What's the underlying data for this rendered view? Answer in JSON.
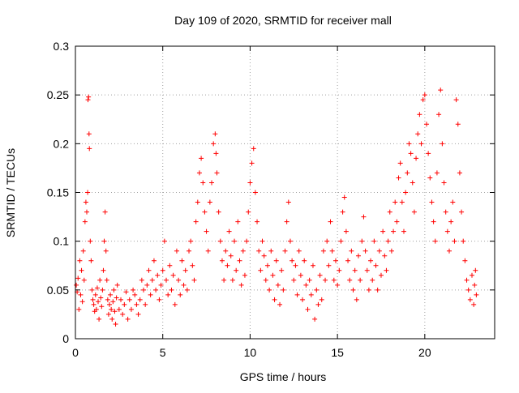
{
  "chart_data": {
    "type": "scatter",
    "title": "Day 109 of 2020, SRMTID for receiver mall",
    "xlabel": "GPS time / hours",
    "ylabel": "SRMTID / TECUs",
    "xlim": [
      0,
      24
    ],
    "ylim": [
      0,
      0.3
    ],
    "xticks": [
      0,
      5,
      10,
      15,
      20
    ],
    "yticks": [
      0,
      0.05,
      0.1,
      0.15,
      0.2,
      0.25,
      0.3
    ],
    "xtick_labels": [
      "0",
      "5",
      "10",
      "15",
      "20"
    ],
    "ytick_labels": [
      "0",
      "0.05",
      "0.1",
      "0.15",
      "0.2",
      "0.25",
      "0.3"
    ],
    "grid": true,
    "marker": "+",
    "color": "#ff0000",
    "series": [
      {
        "name": "SRMTID",
        "points": [
          [
            0.05,
            0.055
          ],
          [
            0.1,
            0.048
          ],
          [
            0.15,
            0.062
          ],
          [
            0.2,
            0.03
          ],
          [
            0.25,
            0.08
          ],
          [
            0.3,
            0.045
          ],
          [
            0.35,
            0.07
          ],
          [
            0.4,
            0.038
          ],
          [
            0.45,
            0.09
          ],
          [
            0.5,
            0.06
          ],
          [
            0.55,
            0.12
          ],
          [
            0.6,
            0.14
          ],
          [
            0.65,
            0.13
          ],
          [
            0.7,
            0.15
          ],
          [
            0.72,
            0.245
          ],
          [
            0.75,
            0.248
          ],
          [
            0.78,
            0.21
          ],
          [
            0.8,
            0.195
          ],
          [
            0.85,
            0.1
          ],
          [
            0.9,
            0.08
          ],
          [
            0.95,
            0.05
          ],
          [
            1.0,
            0.04
          ],
          [
            1.05,
            0.035
          ],
          [
            1.1,
            0.028
          ],
          [
            1.15,
            0.045
          ],
          [
            1.2,
            0.03
          ],
          [
            1.25,
            0.052
          ],
          [
            1.3,
            0.038
          ],
          [
            1.35,
            0.02
          ],
          [
            1.4,
            0.06
          ],
          [
            1.45,
            0.042
          ],
          [
            1.5,
            0.033
          ],
          [
            1.55,
            0.05
          ],
          [
            1.6,
            0.07
          ],
          [
            1.65,
            0.1
          ],
          [
            1.7,
            0.13
          ],
          [
            1.75,
            0.09
          ],
          [
            1.8,
            0.06
          ],
          [
            1.85,
            0.04
          ],
          [
            1.9,
            0.025
          ],
          [
            1.95,
            0.035
          ],
          [
            2.0,
            0.045
          ],
          [
            2.05,
            0.03
          ],
          [
            2.1,
            0.02
          ],
          [
            2.15,
            0.038
          ],
          [
            2.2,
            0.05
          ],
          [
            2.25,
            0.028
          ],
          [
            2.3,
            0.015
          ],
          [
            2.35,
            0.042
          ],
          [
            2.4,
            0.055
          ],
          [
            2.5,
            0.03
          ],
          [
            2.6,
            0.04
          ],
          [
            2.7,
            0.025
          ],
          [
            2.8,
            0.035
          ],
          [
            2.9,
            0.048
          ],
          [
            3.0,
            0.02
          ],
          [
            3.1,
            0.04
          ],
          [
            3.2,
            0.03
          ],
          [
            3.3,
            0.05
          ],
          [
            3.4,
            0.045
          ],
          [
            3.5,
            0.035
          ],
          [
            3.6,
            0.025
          ],
          [
            3.7,
            0.04
          ],
          [
            3.8,
            0.06
          ],
          [
            3.9,
            0.05
          ],
          [
            4.0,
            0.035
          ],
          [
            4.1,
            0.055
          ],
          [
            4.2,
            0.07
          ],
          [
            4.3,
            0.045
          ],
          [
            4.4,
            0.06
          ],
          [
            4.5,
            0.08
          ],
          [
            4.6,
            0.05
          ],
          [
            4.7,
            0.065
          ],
          [
            4.8,
            0.04
          ],
          [
            4.9,
            0.055
          ],
          [
            5.0,
            0.07
          ],
          [
            5.1,
            0.1
          ],
          [
            5.2,
            0.06
          ],
          [
            5.3,
            0.045
          ],
          [
            5.4,
            0.075
          ],
          [
            5.5,
            0.05
          ],
          [
            5.6,
            0.065
          ],
          [
            5.7,
            0.035
          ],
          [
            5.8,
            0.09
          ],
          [
            5.9,
            0.06
          ],
          [
            6.0,
            0.045
          ],
          [
            6.1,
            0.08
          ],
          [
            6.2,
            0.055
          ],
          [
            6.3,
            0.07
          ],
          [
            6.4,
            0.05
          ],
          [
            6.5,
            0.09
          ],
          [
            6.6,
            0.1
          ],
          [
            6.7,
            0.075
          ],
          [
            6.8,
            0.06
          ],
          [
            6.9,
            0.12
          ],
          [
            7.0,
            0.14
          ],
          [
            7.1,
            0.17
          ],
          [
            7.2,
            0.185
          ],
          [
            7.3,
            0.16
          ],
          [
            7.4,
            0.13
          ],
          [
            7.5,
            0.11
          ],
          [
            7.6,
            0.09
          ],
          [
            7.7,
            0.14
          ],
          [
            7.8,
            0.16
          ],
          [
            7.9,
            0.2
          ],
          [
            8.0,
            0.21
          ],
          [
            8.05,
            0.19
          ],
          [
            8.1,
            0.17
          ],
          [
            8.2,
            0.13
          ],
          [
            8.3,
            0.1
          ],
          [
            8.4,
            0.08
          ],
          [
            8.5,
            0.06
          ],
          [
            8.6,
            0.09
          ],
          [
            8.7,
            0.075
          ],
          [
            8.8,
            0.11
          ],
          [
            8.9,
            0.085
          ],
          [
            9.0,
            0.06
          ],
          [
            9.1,
            0.1
          ],
          [
            9.2,
            0.07
          ],
          [
            9.3,
            0.12
          ],
          [
            9.4,
            0.08
          ],
          [
            9.5,
            0.055
          ],
          [
            9.6,
            0.09
          ],
          [
            9.7,
            0.065
          ],
          [
            9.8,
            0.1
          ],
          [
            9.9,
            0.13
          ],
          [
            10.0,
            0.16
          ],
          [
            10.1,
            0.18
          ],
          [
            10.2,
            0.195
          ],
          [
            10.3,
            0.15
          ],
          [
            10.4,
            0.12
          ],
          [
            10.5,
            0.09
          ],
          [
            10.6,
            0.07
          ],
          [
            10.7,
            0.1
          ],
          [
            10.8,
            0.085
          ],
          [
            10.9,
            0.06
          ],
          [
            11.0,
            0.075
          ],
          [
            11.1,
            0.05
          ],
          [
            11.2,
            0.09
          ],
          [
            11.3,
            0.065
          ],
          [
            11.4,
            0.04
          ],
          [
            11.5,
            0.08
          ],
          [
            11.6,
            0.055
          ],
          [
            11.7,
            0.035
          ],
          [
            11.8,
            0.07
          ],
          [
            11.9,
            0.05
          ],
          [
            12.0,
            0.09
          ],
          [
            12.1,
            0.12
          ],
          [
            12.2,
            0.14
          ],
          [
            12.3,
            0.1
          ],
          [
            12.4,
            0.08
          ],
          [
            12.5,
            0.06
          ],
          [
            12.6,
            0.075
          ],
          [
            12.7,
            0.045
          ],
          [
            12.8,
            0.09
          ],
          [
            12.9,
            0.065
          ],
          [
            13.0,
            0.04
          ],
          [
            13.1,
            0.08
          ],
          [
            13.2,
            0.055
          ],
          [
            13.3,
            0.03
          ],
          [
            13.4,
            0.06
          ],
          [
            13.5,
            0.045
          ],
          [
            13.6,
            0.075
          ],
          [
            13.7,
            0.02
          ],
          [
            13.8,
            0.05
          ],
          [
            13.9,
            0.035
          ],
          [
            14.0,
            0.065
          ],
          [
            14.1,
            0.04
          ],
          [
            14.2,
            0.09
          ],
          [
            14.3,
            0.06
          ],
          [
            14.4,
            0.1
          ],
          [
            14.5,
            0.075
          ],
          [
            14.6,
            0.12
          ],
          [
            14.7,
            0.09
          ],
          [
            14.8,
            0.06
          ],
          [
            14.9,
            0.08
          ],
          [
            15.0,
            0.055
          ],
          [
            15.1,
            0.07
          ],
          [
            15.2,
            0.1
          ],
          [
            15.3,
            0.13
          ],
          [
            15.4,
            0.145
          ],
          [
            15.5,
            0.11
          ],
          [
            15.6,
            0.08
          ],
          [
            15.7,
            0.06
          ],
          [
            15.8,
            0.09
          ],
          [
            15.9,
            0.05
          ],
          [
            16.0,
            0.07
          ],
          [
            16.1,
            0.04
          ],
          [
            16.2,
            0.085
          ],
          [
            16.3,
            0.06
          ],
          [
            16.4,
            0.1
          ],
          [
            16.5,
            0.125
          ],
          [
            16.6,
            0.09
          ],
          [
            16.7,
            0.07
          ],
          [
            16.8,
            0.05
          ],
          [
            16.9,
            0.08
          ],
          [
            17.0,
            0.06
          ],
          [
            17.1,
            0.1
          ],
          [
            17.2,
            0.075
          ],
          [
            17.3,
            0.05
          ],
          [
            17.4,
            0.09
          ],
          [
            17.5,
            0.065
          ],
          [
            17.6,
            0.11
          ],
          [
            17.7,
            0.085
          ],
          [
            17.8,
            0.07
          ],
          [
            17.9,
            0.1
          ],
          [
            18.0,
            0.13
          ],
          [
            18.1,
            0.09
          ],
          [
            18.2,
            0.11
          ],
          [
            18.3,
            0.14
          ],
          [
            18.4,
            0.12
          ],
          [
            18.5,
            0.165
          ],
          [
            18.6,
            0.18
          ],
          [
            18.7,
            0.14
          ],
          [
            18.8,
            0.11
          ],
          [
            18.9,
            0.15
          ],
          [
            19.0,
            0.17
          ],
          [
            19.1,
            0.2
          ],
          [
            19.2,
            0.19
          ],
          [
            19.3,
            0.16
          ],
          [
            19.4,
            0.13
          ],
          [
            19.5,
            0.185
          ],
          [
            19.6,
            0.21
          ],
          [
            19.7,
            0.23
          ],
          [
            19.8,
            0.2
          ],
          [
            19.9,
            0.245
          ],
          [
            20.0,
            0.25
          ],
          [
            20.1,
            0.22
          ],
          [
            20.2,
            0.19
          ],
          [
            20.3,
            0.165
          ],
          [
            20.4,
            0.14
          ],
          [
            20.5,
            0.12
          ],
          [
            20.6,
            0.1
          ],
          [
            20.7,
            0.17
          ],
          [
            20.8,
            0.23
          ],
          [
            20.9,
            0.255
          ],
          [
            21.0,
            0.2
          ],
          [
            21.1,
            0.16
          ],
          [
            21.2,
            0.13
          ],
          [
            21.3,
            0.11
          ],
          [
            21.4,
            0.09
          ],
          [
            21.5,
            0.12
          ],
          [
            21.6,
            0.14
          ],
          [
            21.7,
            0.1
          ],
          [
            21.8,
            0.245
          ],
          [
            21.9,
            0.22
          ],
          [
            22.0,
            0.17
          ],
          [
            22.1,
            0.13
          ],
          [
            22.2,
            0.1
          ],
          [
            22.3,
            0.08
          ],
          [
            22.4,
            0.06
          ],
          [
            22.5,
            0.05
          ],
          [
            22.6,
            0.04
          ],
          [
            22.7,
            0.065
          ],
          [
            22.8,
            0.035
          ],
          [
            22.85,
            0.055
          ],
          [
            22.9,
            0.07
          ],
          [
            22.95,
            0.045
          ]
        ]
      }
    ]
  }
}
